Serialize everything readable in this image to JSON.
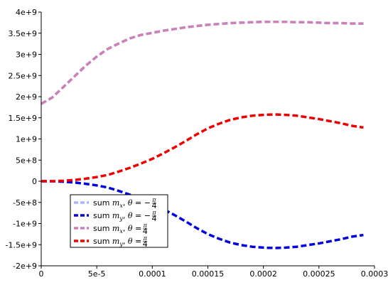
{
  "chart_data": {
    "type": "line",
    "xlim": [
      0,
      0.0003
    ],
    "ylim": [
      -2000000000,
      4000000000
    ],
    "x_ticks": [
      {
        "value": 0,
        "label": "0"
      },
      {
        "value": 5e-05,
        "label": "5e-5"
      },
      {
        "value": 0.0001,
        "label": "0.0001"
      },
      {
        "value": 0.00015,
        "label": "0.00015"
      },
      {
        "value": 0.0002,
        "label": "0.0002"
      },
      {
        "value": 0.00025,
        "label": "0.00025"
      },
      {
        "value": 0.0003,
        "label": "0.0003"
      }
    ],
    "y_ticks": [
      {
        "value": -2000000000,
        "label": "-2e+9"
      },
      {
        "value": -1500000000,
        "label": "-1.5e+9"
      },
      {
        "value": -1000000000,
        "label": "-1e+9"
      },
      {
        "value": -500000000,
        "label": "-5e+8"
      },
      {
        "value": 0,
        "label": "0"
      },
      {
        "value": 500000000,
        "label": "5e+8"
      },
      {
        "value": 1000000000,
        "label": "1e+9"
      },
      {
        "value": 1500000000,
        "label": "1.5e+9"
      },
      {
        "value": 2000000000,
        "label": "2e+9"
      },
      {
        "value": 2500000000,
        "label": "2.5e+9"
      },
      {
        "value": 3000000000,
        "label": "3e+9"
      },
      {
        "value": 3500000000,
        "label": "3.5e+9"
      },
      {
        "value": 4000000000,
        "label": "4e+9"
      }
    ],
    "grid": false,
    "legend_position": "lower-left",
    "x": [
      0,
      1e-05,
      2e-05,
      3e-05,
      4e-05,
      5e-05,
      6e-05,
      7e-05,
      8e-05,
      9e-05,
      0.0001,
      0.00011,
      0.00012,
      0.00013,
      0.00014,
      0.00015,
      0.00016,
      0.00017,
      0.00018,
      0.00019,
      0.0002,
      0.00021,
      0.00022,
      0.00023,
      0.00024,
      0.00025,
      0.00026,
      0.00027,
      0.00028,
      0.00029
    ],
    "series": [
      {
        "name": "sum m_x, θ = -π/4",
        "label_parts": {
          "pre": "sum ",
          "sym": "m",
          "sub": "x",
          "mid": ",  ",
          "theta": "θ",
          "eq": " = −",
          "num": "π",
          "den": "4"
        },
        "color": "#aab4ff",
        "values": [
          1830000000,
          1980000000,
          2230000000,
          2480000000,
          2730000000,
          2950000000,
          3130000000,
          3260000000,
          3380000000,
          3460000000,
          3510000000,
          3560000000,
          3600000000,
          3640000000,
          3670000000,
          3700000000,
          3720000000,
          3740000000,
          3750000000,
          3760000000,
          3770000000,
          3770000000,
          3770000000,
          3760000000,
          3760000000,
          3750000000,
          3740000000,
          3740000000,
          3730000000,
          3730000000
        ]
      },
      {
        "name": "sum m_y, θ = -π/4",
        "label_parts": {
          "pre": "sum ",
          "sym": "m",
          "sub": "y",
          "mid": ",  ",
          "theta": "θ",
          "eq": " = −",
          "num": "π",
          "den": "4"
        },
        "color": "#0000e0",
        "values": [
          0,
          0,
          -10000000,
          -30000000,
          -60000000,
          -100000000,
          -150000000,
          -230000000,
          -320000000,
          -420000000,
          -530000000,
          -660000000,
          -800000000,
          -950000000,
          -1110000000,
          -1250000000,
          -1360000000,
          -1450000000,
          -1510000000,
          -1550000000,
          -1570000000,
          -1580000000,
          -1570000000,
          -1550000000,
          -1510000000,
          -1470000000,
          -1420000000,
          -1370000000,
          -1310000000,
          -1270000000
        ]
      },
      {
        "name": "sum m_x, θ = π/4",
        "label_parts": {
          "pre": "sum ",
          "sym": "m",
          "sub": "x",
          "mid": ",  ",
          "theta": "θ",
          "eq": " = ",
          "num": "π",
          "den": "4"
        },
        "color": "#cc80b8",
        "values": [
          1830000000,
          1980000000,
          2230000000,
          2480000000,
          2730000000,
          2950000000,
          3130000000,
          3260000000,
          3380000000,
          3460000000,
          3510000000,
          3560000000,
          3600000000,
          3640000000,
          3670000000,
          3700000000,
          3720000000,
          3740000000,
          3750000000,
          3760000000,
          3770000000,
          3770000000,
          3770000000,
          3760000000,
          3760000000,
          3750000000,
          3740000000,
          3740000000,
          3730000000,
          3730000000
        ]
      },
      {
        "name": "sum m_y, θ = π/4",
        "label_parts": {
          "pre": "sum ",
          "sym": "m",
          "sub": "y",
          "mid": ",  ",
          "theta": "θ",
          "eq": " = ",
          "num": "π",
          "den": "4"
        },
        "color": "#ee0000",
        "values": [
          0,
          0,
          10000000,
          30000000,
          60000000,
          100000000,
          150000000,
          230000000,
          320000000,
          420000000,
          530000000,
          660000000,
          800000000,
          950000000,
          1110000000,
          1250000000,
          1360000000,
          1450000000,
          1510000000,
          1550000000,
          1570000000,
          1580000000,
          1570000000,
          1550000000,
          1510000000,
          1470000000,
          1420000000,
          1370000000,
          1310000000,
          1270000000
        ]
      }
    ]
  }
}
